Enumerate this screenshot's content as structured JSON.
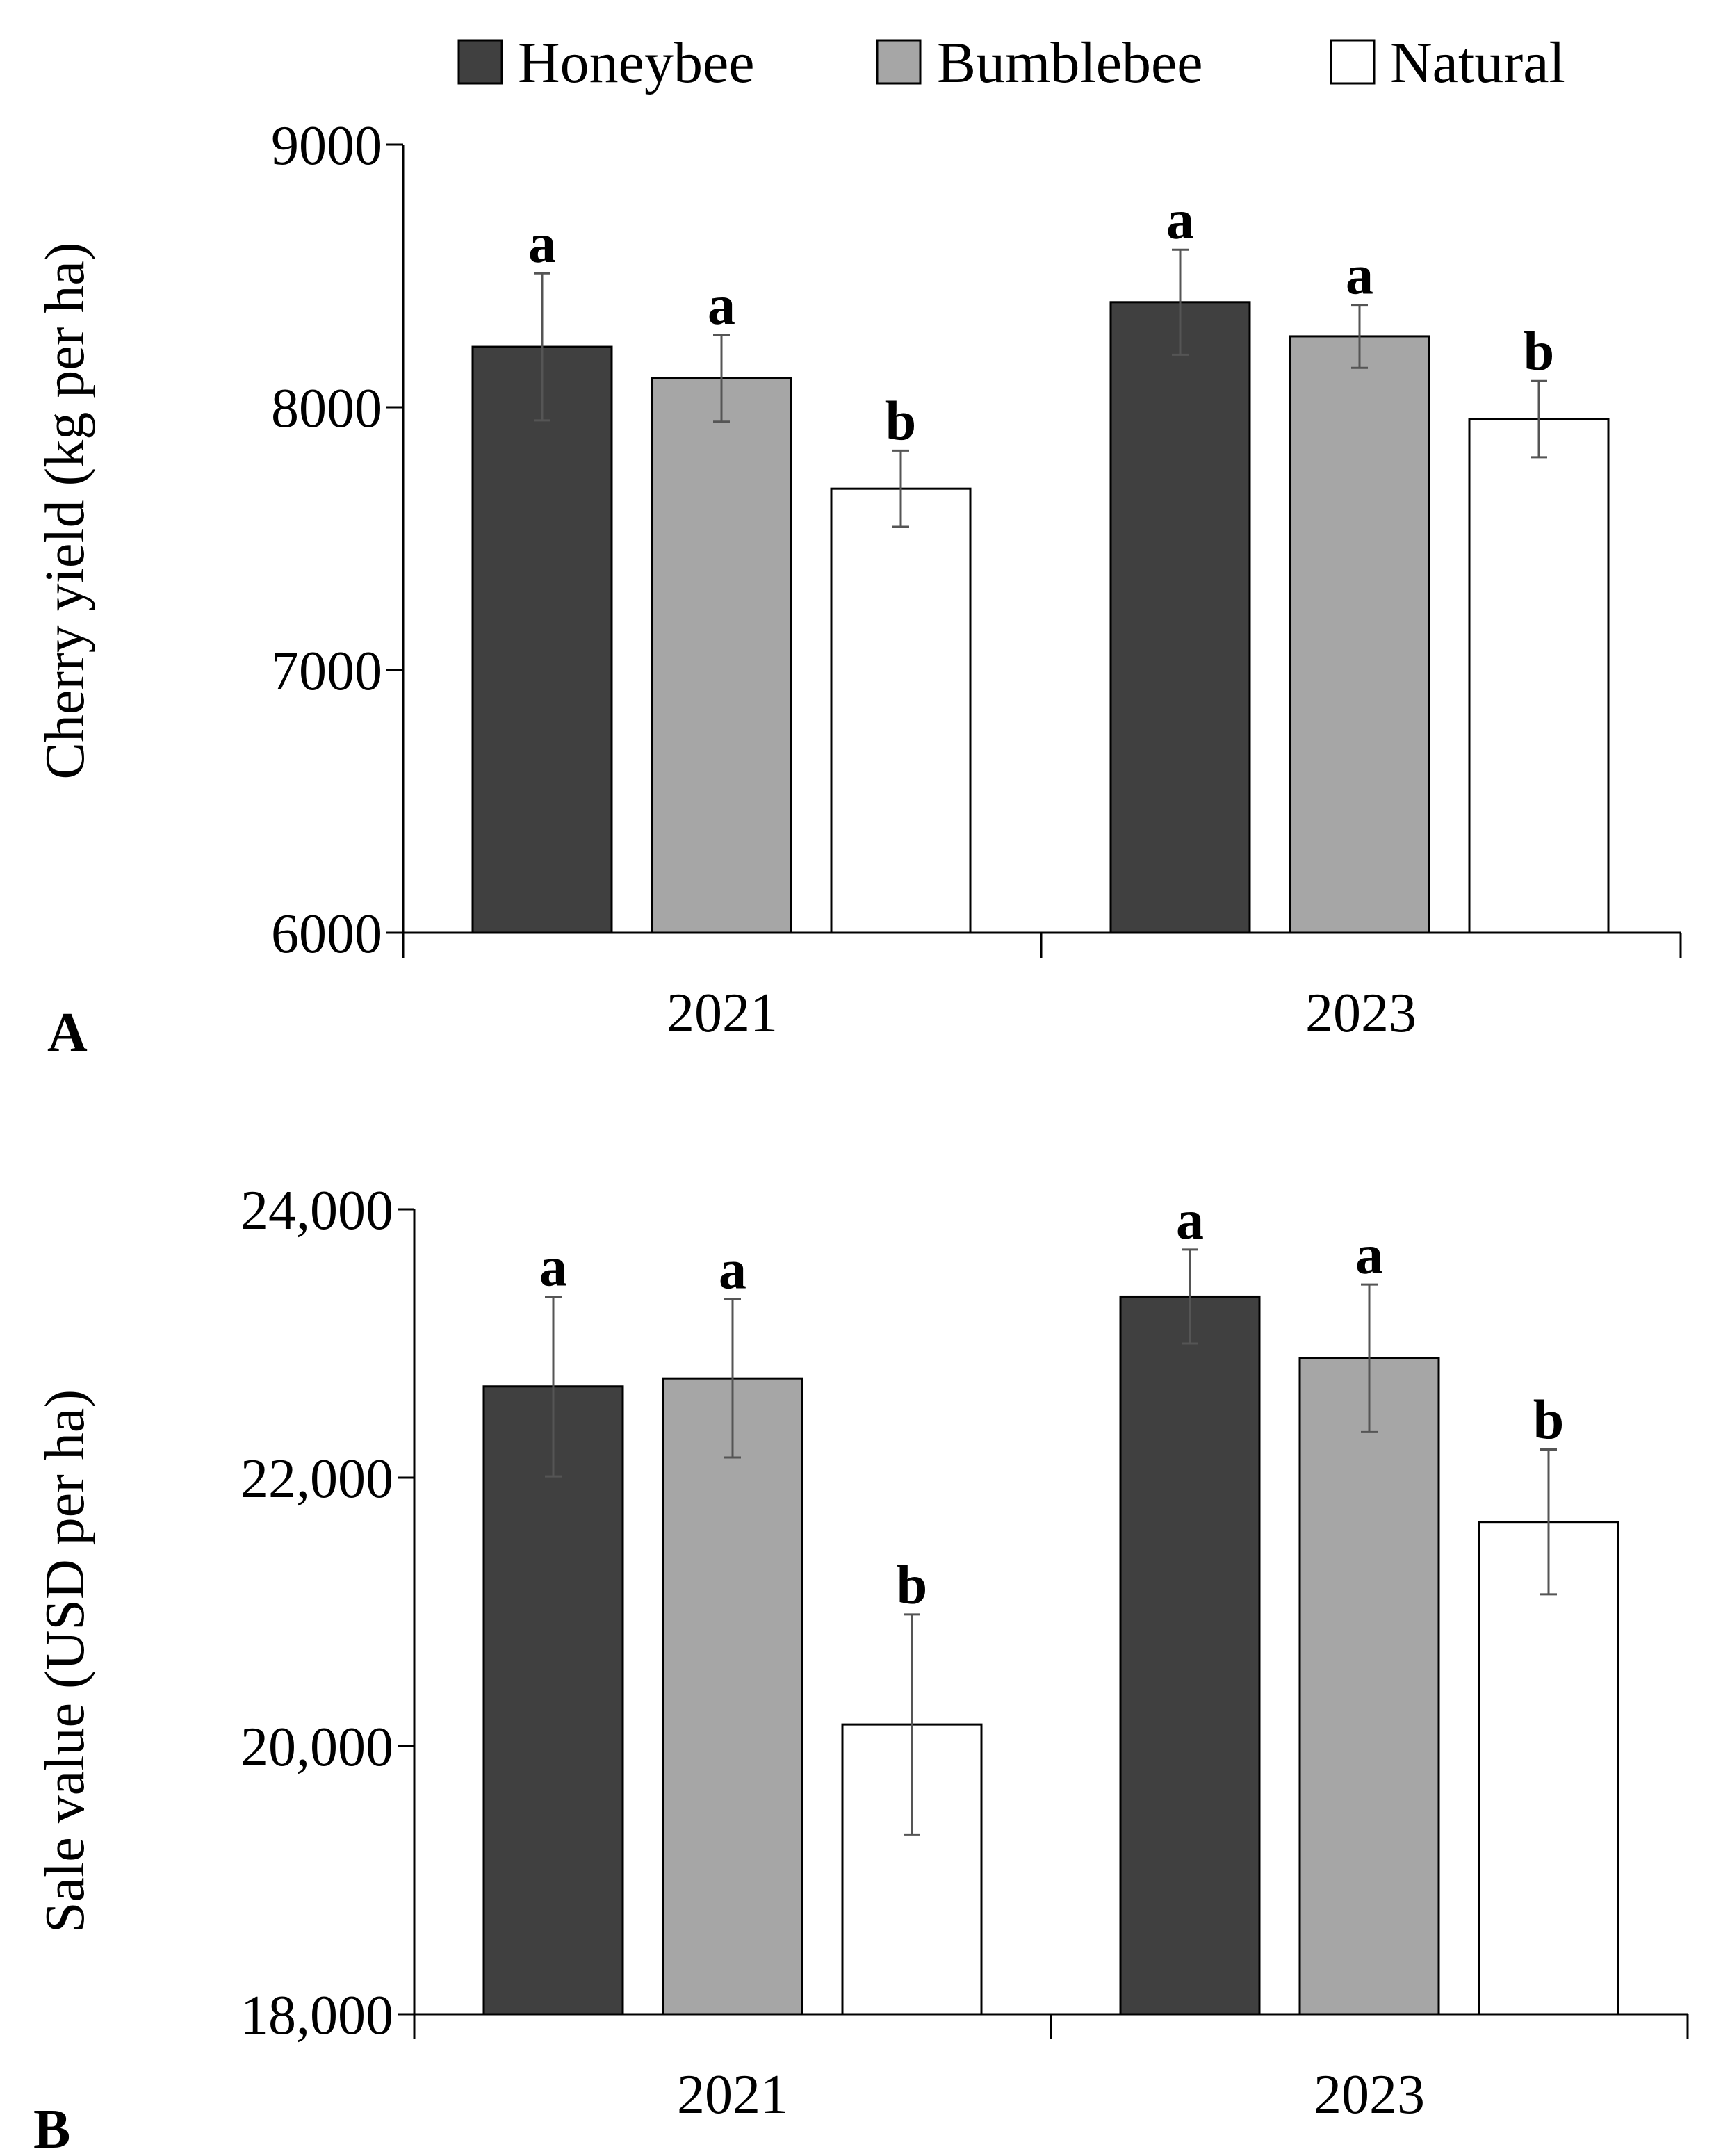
{
  "chart_data": [
    {
      "panel": "A",
      "type": "bar",
      "categories": [
        "2021",
        "2023"
      ],
      "series": [
        {
          "name": "Honeybee",
          "values": [
            8230,
            8400
          ],
          "errors": [
            280,
            200
          ],
          "letters": [
            "a",
            "a"
          ],
          "color": "#404040"
        },
        {
          "name": "Bumblebee",
          "values": [
            8110,
            8270
          ],
          "errors": [
            165,
            120
          ],
          "letters": [
            "a",
            "a"
          ],
          "color": "#a6a6a6"
        },
        {
          "name": "Natural",
          "values": [
            7690,
            7955
          ],
          "errors": [
            145,
            145
          ],
          "letters": [
            "b",
            "b"
          ],
          "color": "#ffffff"
        }
      ],
      "ylabel": "Cherry yield (kg per ha)",
      "xlabel": "",
      "ylim": [
        6000,
        9000
      ],
      "yticks": [
        6000,
        7000,
        8000,
        9000
      ],
      "ytick_labels": [
        "6000",
        "7000",
        "8000",
        "9000"
      ]
    },
    {
      "panel": "B",
      "type": "bar",
      "categories": [
        "2021",
        "2023"
      ],
      "series": [
        {
          "name": "Honeybee",
          "values": [
            22680,
            23350
          ],
          "errors": [
            670,
            350
          ],
          "letters": [
            "a",
            "a"
          ],
          "color": "#404040"
        },
        {
          "name": "Bumblebee",
          "values": [
            22740,
            22890
          ],
          "errors": [
            590,
            550
          ],
          "letters": [
            "a",
            "a"
          ],
          "color": "#a6a6a6"
        },
        {
          "name": "Natural",
          "values": [
            20160,
            21670
          ],
          "errors": [
            820,
            540
          ],
          "letters": [
            "b",
            "b"
          ],
          "color": "#ffffff"
        }
      ],
      "ylabel": "Sale value (USD per ha)",
      "xlabel": "",
      "ylim": [
        18000,
        24000
      ],
      "yticks": [
        18000,
        20000,
        22000,
        24000
      ],
      "ytick_labels": [
        "18,000",
        "20,000",
        "22,000",
        "24,000"
      ]
    }
  ],
  "legend": {
    "items": [
      {
        "label": "Honeybee",
        "color": "#404040"
      },
      {
        "label": "Bumblebee",
        "color": "#a6a6a6"
      },
      {
        "label": "Natural",
        "color": "#ffffff"
      }
    ],
    "placement": "top-center"
  },
  "panel_labels": [
    "A",
    "B"
  ]
}
